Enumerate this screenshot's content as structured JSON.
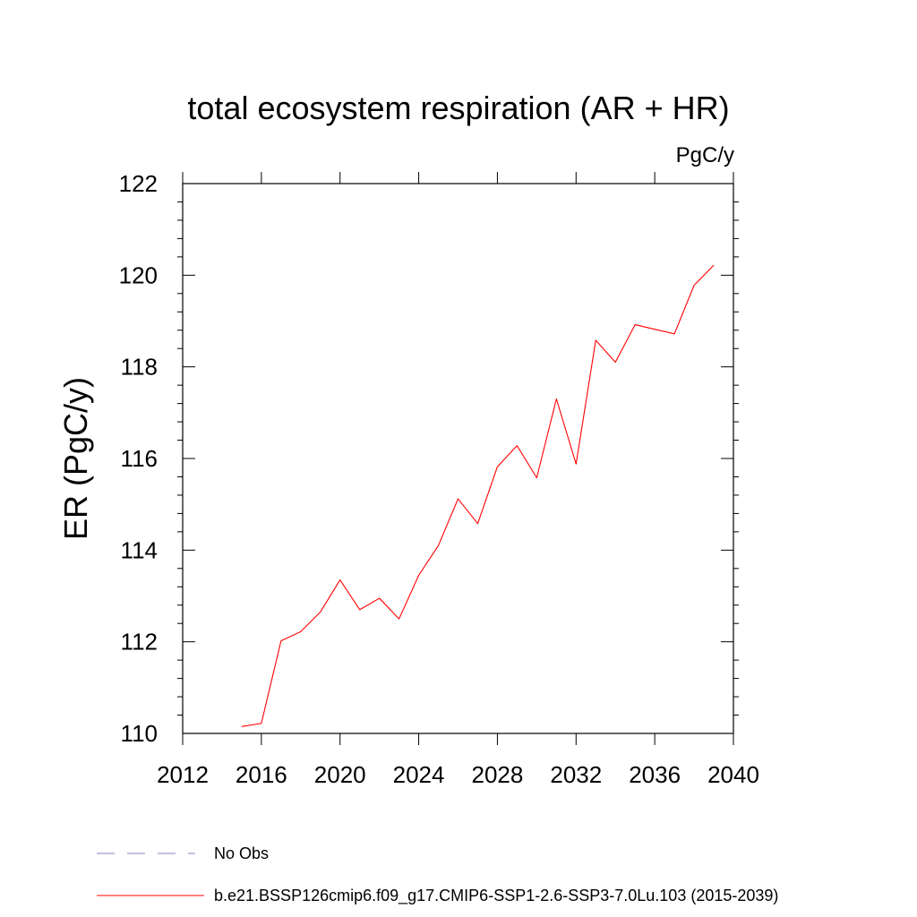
{
  "chart_data": {
    "type": "line",
    "title": "total ecosystem respiration (AR + HR)",
    "units": "PgC/y",
    "xlabel": "",
    "ylabel": "ER  (PgC/y)",
    "xlim": [
      2012,
      2040
    ],
    "ylim": [
      110,
      122
    ],
    "x_ticks": [
      2012,
      2016,
      2020,
      2024,
      2028,
      2032,
      2036,
      2040
    ],
    "y_ticks": [
      110,
      112,
      114,
      116,
      118,
      120,
      122
    ],
    "x_tick_labels": [
      "2012",
      "2016",
      "2020",
      "2024",
      "2028",
      "2032",
      "2036",
      "2040"
    ],
    "y_tick_labels": [
      "110",
      "112",
      "114",
      "116",
      "118",
      "120",
      "122"
    ],
    "grid": false,
    "legend_position": "bottom",
    "series": [
      {
        "name": "b.e21.BSSP126cmip6.f09_g17.CMIP6-SSP1-2.6-SSP3-7.0Lu.103 (2015-2039)",
        "color": "#ff0000",
        "style": "solid",
        "x": [
          2015,
          2016,
          2017,
          2018,
          2019,
          2020,
          2021,
          2022,
          2023,
          2024,
          2025,
          2026,
          2027,
          2028,
          2029,
          2030,
          2031,
          2032,
          2033,
          2034,
          2035,
          2036,
          2037,
          2038,
          2039
        ],
        "values": [
          110.15,
          110.22,
          112.02,
          112.22,
          112.65,
          113.35,
          112.7,
          112.95,
          112.5,
          113.45,
          114.1,
          115.12,
          114.58,
          115.82,
          116.28,
          115.58,
          117.3,
          115.88,
          118.58,
          118.1,
          118.92,
          118.82,
          118.72,
          119.78,
          120.22
        ]
      },
      {
        "name": "No Obs",
        "color": "#8a7fbf",
        "style": "dashed",
        "x": [],
        "values": []
      }
    ]
  }
}
